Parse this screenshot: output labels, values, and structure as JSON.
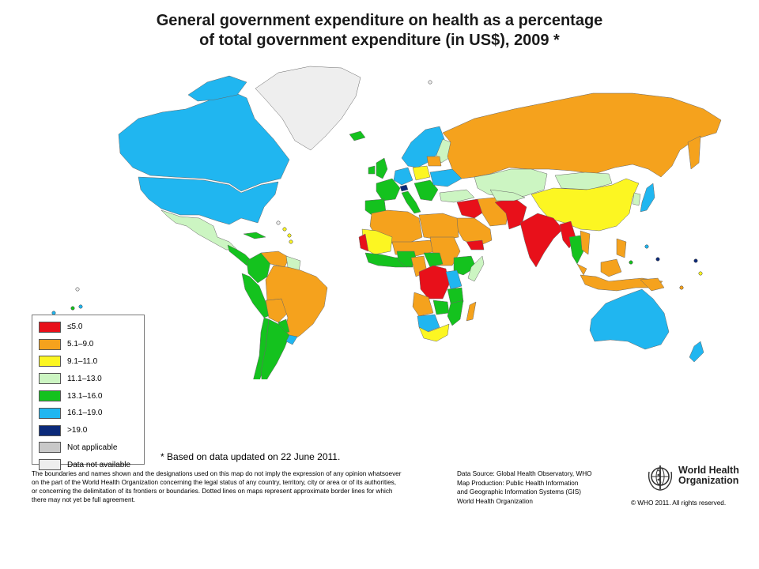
{
  "title": {
    "line1": "General government expenditure on health as a percentage",
    "line2": "of total government expenditure (in US$), 2009 *"
  },
  "colors": {
    "le5": "#e8101a",
    "c5_9": "#f5a21d",
    "c9_11": "#fcf622",
    "c11_13": "#ccf5c2",
    "c13_16": "#14c21e",
    "c16_19": "#20b6f0",
    "gt19": "#0b2a7a",
    "not_applicable": "#c8c8c8",
    "no_data": "#eeeeee"
  },
  "legend": [
    {
      "label": "≤5.0",
      "color": "#e8101a"
    },
    {
      "label": "5.1–9.0",
      "color": "#f5a21d"
    },
    {
      "label": "9.1–11.0",
      "color": "#fcf622"
    },
    {
      "label": "11.1–13.0",
      "color": "#ccf5c2"
    },
    {
      "label": "13.1–16.0",
      "color": "#14c21e"
    },
    {
      "label": "16.1–19.0",
      "color": "#20b6f0"
    },
    {
      ">": "",
      "label": ">19.0",
      "color": "#0b2a7a"
    },
    {
      "label": "Not applicable",
      "color": "#c8c8c8"
    },
    {
      "label": "Data not available",
      "color": "#eeeeee"
    }
  ],
  "footnote": "* Based on data updated on 22 June 2011.",
  "disclaimer": [
    "The boundaries and names shown and the designations used on this map do not imply the expression of any opinion whatsoever",
    "on the part of the World Health Organization concerning the legal status of any country, territory, city or area or of its authorities,",
    "or concerning the delimitation of its frontiers or boundaries. Dotted lines on maps represent approximate border lines for which",
    "there may not yet be full agreement."
  ],
  "source": [
    "Data Source: Global Health Observatory, WHO",
    "Map Production: Public Health Information",
    "and Geographic Information Systems (GIS)",
    "World Health Organization"
  ],
  "organization": {
    "line1": "World Health",
    "line2": "Organization",
    "logo_icon": "who-emblem-icon"
  },
  "copyright": "© WHO 2011. All rights reserved."
}
